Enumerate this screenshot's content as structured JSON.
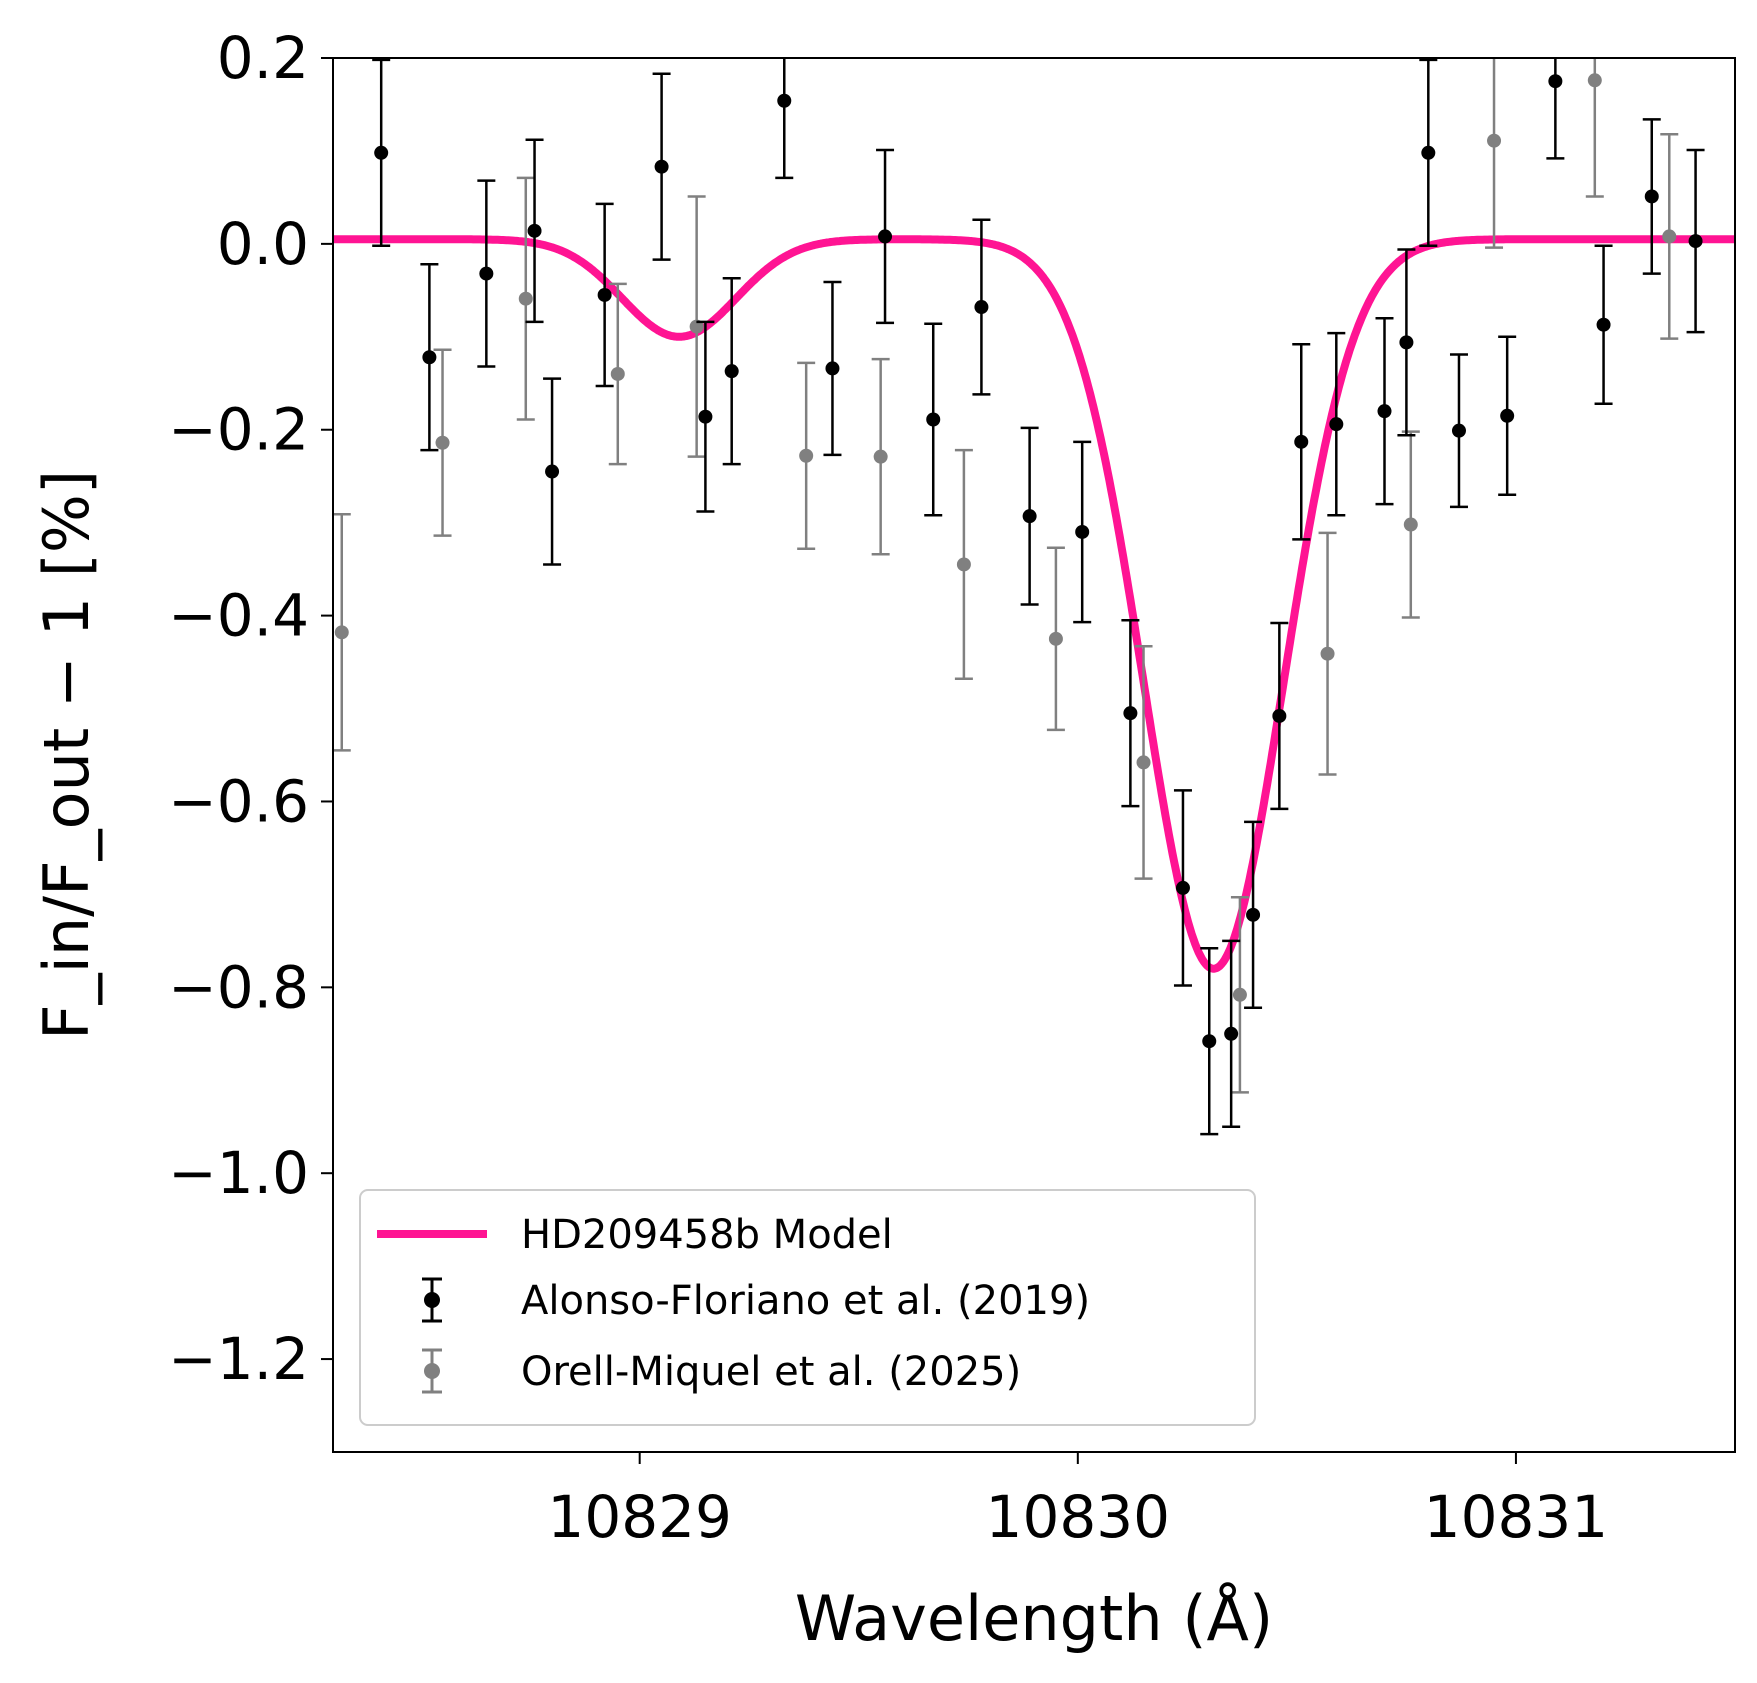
{
  "chart_data": {
    "type": "scatter",
    "title": "",
    "xlabel": "Wavelength (Å)",
    "ylabel": "F_in/F_out − 1 [%]",
    "xlim": [
      10828.3,
      10831.5
    ],
    "ylim": [
      -1.3,
      0.2
    ],
    "xticks": [
      10829,
      10830,
      10831
    ],
    "xtick_labels": [
      "10829",
      "10830",
      "10831"
    ],
    "yticks": [
      0.2,
      0.0,
      -0.2,
      -0.4,
      -0.6,
      -0.8,
      -1.0,
      -1.2
    ],
    "ytick_labels": [
      "0.2",
      "0.0",
      "−0.2",
      "−0.4",
      "−0.6",
      "−0.8",
      "−1.0",
      "−1.2"
    ],
    "grid": false,
    "legend_position": "lower-left",
    "model": {
      "name": "HD209458b Model",
      "color": "#ff1493",
      "baseline": 0.005,
      "components": [
        {
          "center": 10829.09,
          "depth": 0.105,
          "sigma": 0.13
        },
        {
          "center": 10830.31,
          "depth": 0.785,
          "sigma": 0.16
        }
      ]
    },
    "series": [
      {
        "name": "Alonso-Floriano et al. (2019)",
        "color": "#000000",
        "points": [
          {
            "x": 10828.41,
            "y": 0.098,
            "err": 0.1
          },
          {
            "x": 10828.52,
            "y": -0.122,
            "err": 0.1
          },
          {
            "x": 10828.65,
            "y": -0.032,
            "err": 0.1
          },
          {
            "x": 10828.76,
            "y": 0.014,
            "err": 0.098
          },
          {
            "x": 10828.8,
            "y": -0.245,
            "err": 0.1
          },
          {
            "x": 10828.92,
            "y": -0.055,
            "err": 0.098
          },
          {
            "x": 10829.05,
            "y": 0.083,
            "err": 0.1
          },
          {
            "x": 10829.15,
            "y": -0.186,
            "err": 0.102
          },
          {
            "x": 10829.21,
            "y": -0.137,
            "err": 0.1
          },
          {
            "x": 10829.33,
            "y": 0.154,
            "err": 0.083
          },
          {
            "x": 10829.44,
            "y": -0.134,
            "err": 0.093
          },
          {
            "x": 10829.56,
            "y": 0.008,
            "err": 0.093
          },
          {
            "x": 10829.67,
            "y": -0.189,
            "err": 0.103
          },
          {
            "x": 10829.78,
            "y": -0.068,
            "err": 0.094
          },
          {
            "x": 10829.89,
            "y": -0.293,
            "err": 0.095
          },
          {
            "x": 10830.01,
            "y": -0.31,
            "err": 0.097
          },
          {
            "x": 10830.12,
            "y": -0.505,
            "err": 0.1
          },
          {
            "x": 10830.24,
            "y": -0.693,
            "err": 0.105
          },
          {
            "x": 10830.3,
            "y": -0.858,
            "err": 0.1
          },
          {
            "x": 10830.35,
            "y": -0.85,
            "err": 0.1
          },
          {
            "x": 10830.4,
            "y": -0.722,
            "err": 0.1
          },
          {
            "x": 10830.46,
            "y": -0.508,
            "err": 0.1
          },
          {
            "x": 10830.51,
            "y": -0.213,
            "err": 0.105
          },
          {
            "x": 10830.59,
            "y": -0.194,
            "err": 0.098
          },
          {
            "x": 10830.7,
            "y": -0.18,
            "err": 0.1
          },
          {
            "x": 10830.75,
            "y": -0.106,
            "err": 0.1
          },
          {
            "x": 10830.8,
            "y": 0.098,
            "err": 0.1
          },
          {
            "x": 10830.87,
            "y": -0.201,
            "err": 0.082
          },
          {
            "x": 10830.98,
            "y": -0.185,
            "err": 0.085
          },
          {
            "x": 10831.09,
            "y": 0.175,
            "err": 0.083
          },
          {
            "x": 10831.2,
            "y": -0.087,
            "err": 0.085
          },
          {
            "x": 10831.31,
            "y": 0.051,
            "err": 0.083
          },
          {
            "x": 10831.41,
            "y": 0.003,
            "err": 0.098
          }
        ]
      },
      {
        "name": "Orell-Miquel et al. (2025)",
        "color": "#808080",
        "points": [
          {
            "x": 10828.32,
            "y": -0.418,
            "err": 0.127
          },
          {
            "x": 10828.55,
            "y": -0.214,
            "err": 0.1
          },
          {
            "x": 10828.74,
            "y": -0.059,
            "err": 0.13
          },
          {
            "x": 10828.95,
            "y": -0.14,
            "err": 0.097
          },
          {
            "x": 10829.13,
            "y": -0.089,
            "err": 0.14
          },
          {
            "x": 10829.38,
            "y": -0.228,
            "err": 0.1
          },
          {
            "x": 10829.55,
            "y": -0.229,
            "err": 0.105
          },
          {
            "x": 10829.74,
            "y": -0.345,
            "err": 0.123
          },
          {
            "x": 10829.95,
            "y": -0.425,
            "err": 0.098
          },
          {
            "x": 10830.15,
            "y": -0.558,
            "err": 0.125
          },
          {
            "x": 10830.37,
            "y": -0.808,
            "err": 0.105
          },
          {
            "x": 10830.57,
            "y": -0.441,
            "err": 0.13
          },
          {
            "x": 10830.76,
            "y": -0.302,
            "err": 0.1
          },
          {
            "x": 10830.95,
            "y": 0.111,
            "err": 0.115
          },
          {
            "x": 10831.18,
            "y": 0.176,
            "err": 0.125
          },
          {
            "x": 10831.35,
            "y": 0.008,
            "err": 0.11
          }
        ]
      }
    ]
  }
}
